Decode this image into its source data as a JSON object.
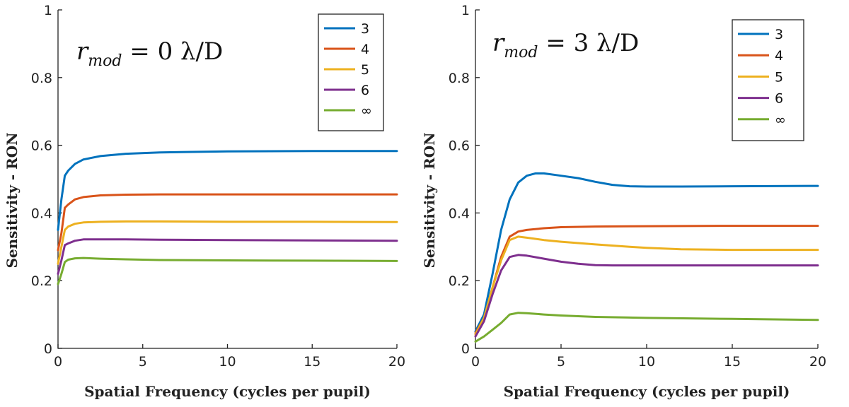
{
  "chart_data": [
    {
      "type": "line",
      "annotation": {
        "var": "r",
        "sub": "mod",
        "rest": " = 0 λ/D"
      },
      "xlabel": "Spatial Frequency (cycles per pupil)",
      "ylabel": "Sensitivity - RON",
      "xlim": [
        0,
        20
      ],
      "ylim": [
        0,
        1
      ],
      "xticks": [
        0,
        5,
        10,
        15,
        20
      ],
      "yticks": [
        0,
        0.2,
        0.4,
        0.6,
        0.8,
        1
      ],
      "ytick_labels": [
        "0",
        "0.2",
        "0.4",
        "0.6",
        "0.8",
        "1"
      ],
      "legend_position": "top-right",
      "series": [
        {
          "name": "3",
          "color": "#0072BD",
          "x": [
            0,
            0.2,
            0.4,
            0.6,
            1.0,
            1.5,
            2.5,
            4,
            6,
            10,
            15,
            20
          ],
          "y": [
            0.35,
            0.44,
            0.51,
            0.525,
            0.545,
            0.558,
            0.568,
            0.575,
            0.579,
            0.582,
            0.583,
            0.583
          ]
        },
        {
          "name": "4",
          "color": "#D95319",
          "x": [
            0,
            0.2,
            0.4,
            0.6,
            1.0,
            1.5,
            2.5,
            4,
            6,
            10,
            15,
            20
          ],
          "y": [
            0.29,
            0.34,
            0.415,
            0.425,
            0.44,
            0.447,
            0.452,
            0.454,
            0.455,
            0.455,
            0.455,
            0.455
          ]
        },
        {
          "name": "5",
          "color": "#EDB120",
          "x": [
            0,
            0.2,
            0.4,
            0.6,
            1.0,
            1.5,
            2.5,
            4,
            6,
            10,
            15,
            20
          ],
          "y": [
            0.25,
            0.3,
            0.35,
            0.36,
            0.368,
            0.372,
            0.374,
            0.375,
            0.375,
            0.374,
            0.374,
            0.373
          ]
        },
        {
          "name": "6",
          "color": "#7E2F8E",
          "x": [
            0,
            0.2,
            0.4,
            0.6,
            1.0,
            1.5,
            2.5,
            4,
            6,
            10,
            15,
            20
          ],
          "y": [
            0.22,
            0.26,
            0.305,
            0.31,
            0.318,
            0.322,
            0.322,
            0.322,
            0.321,
            0.32,
            0.319,
            0.318
          ]
        },
        {
          "name": "∞",
          "color": "#77AC30",
          "x": [
            0,
            0.2,
            0.4,
            0.6,
            1.0,
            1.5,
            2.5,
            4,
            6,
            10,
            15,
            20
          ],
          "y": [
            0.19,
            0.22,
            0.255,
            0.262,
            0.266,
            0.267,
            0.265,
            0.263,
            0.261,
            0.26,
            0.259,
            0.258
          ]
        }
      ]
    },
    {
      "type": "line",
      "annotation": {
        "var": "r",
        "sub": "mod",
        "rest": " = 3 λ/D"
      },
      "xlabel": "Spatial Frequency (cycles per pupil)",
      "ylabel": "Sensitivity - RON",
      "xlim": [
        0,
        20
      ],
      "ylim": [
        0,
        1
      ],
      "xticks": [
        0,
        5,
        10,
        15,
        20
      ],
      "yticks": [
        0,
        0.2,
        0.4,
        0.6,
        0.8,
        1
      ],
      "ytick_labels": [
        "0",
        "0.2",
        "0.4",
        "0.6",
        "0.8",
        "1"
      ],
      "legend_position": "top-right",
      "series": [
        {
          "name": "3",
          "color": "#0072BD",
          "x": [
            0,
            0.5,
            1,
            1.5,
            2,
            2.5,
            3,
            3.5,
            4,
            5,
            6,
            7,
            8,
            9,
            10,
            12,
            15,
            20
          ],
          "y": [
            0.05,
            0.1,
            0.22,
            0.35,
            0.44,
            0.49,
            0.51,
            0.517,
            0.517,
            0.51,
            0.503,
            0.492,
            0.483,
            0.479,
            0.478,
            0.478,
            0.479,
            0.48
          ]
        },
        {
          "name": "4",
          "color": "#D95319",
          "x": [
            0,
            0.5,
            1,
            1.5,
            2,
            2.5,
            3,
            4,
            5,
            7,
            10,
            15,
            20
          ],
          "y": [
            0.045,
            0.09,
            0.18,
            0.27,
            0.33,
            0.345,
            0.35,
            0.355,
            0.358,
            0.36,
            0.361,
            0.362,
            0.362
          ]
        },
        {
          "name": "5",
          "color": "#EDB120",
          "x": [
            0,
            0.5,
            1,
            1.5,
            2,
            2.5,
            3,
            4,
            5,
            7,
            9,
            10,
            12,
            15,
            20
          ],
          "y": [
            0.04,
            0.09,
            0.18,
            0.26,
            0.32,
            0.33,
            0.327,
            0.32,
            0.315,
            0.307,
            0.3,
            0.297,
            0.293,
            0.291,
            0.291
          ]
        },
        {
          "name": "6",
          "color": "#7E2F8E",
          "x": [
            0,
            0.5,
            1,
            1.5,
            2,
            2.5,
            3,
            4,
            5,
            6,
            7,
            8,
            10,
            15,
            20
          ],
          "y": [
            0.035,
            0.08,
            0.16,
            0.23,
            0.27,
            0.276,
            0.274,
            0.265,
            0.256,
            0.25,
            0.246,
            0.245,
            0.245,
            0.245,
            0.245
          ]
        },
        {
          "name": "∞",
          "color": "#77AC30",
          "x": [
            0,
            0.5,
            1,
            1.5,
            2,
            2.5,
            3,
            4,
            5,
            7,
            10,
            15,
            20
          ],
          "y": [
            0.02,
            0.035,
            0.055,
            0.075,
            0.1,
            0.105,
            0.104,
            0.1,
            0.097,
            0.093,
            0.09,
            0.087,
            0.084
          ]
        }
      ]
    }
  ]
}
